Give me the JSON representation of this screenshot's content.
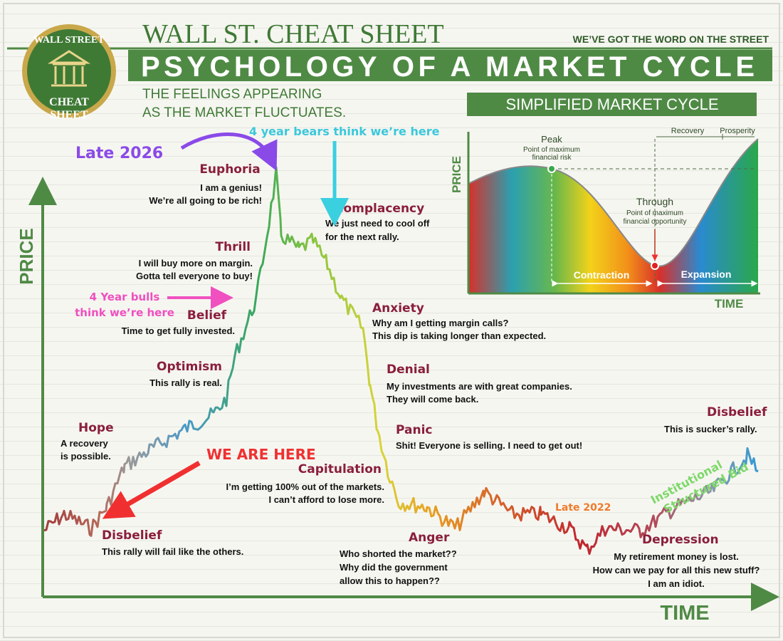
{
  "header": {
    "logo": [
      "WALL STREET",
      "CHEAT",
      "SHEET"
    ],
    "brand": "WALL ST. CHEAT SHEET",
    "tagline": "WE’VE GOT THE WORD ON THE STREET",
    "title": "PSYCHOLOGY OF A MARKET CYCLE",
    "subtitle": [
      "THE FEELINGS APPEARING",
      "AS THE MARKET FLUCTUATES."
    ]
  },
  "axes": {
    "y_label": "PRICE",
    "x_label": "TIME"
  },
  "stages": [
    {
      "name": "Disbelief",
      "lines": [
        "This rally will fail like the others."
      ]
    },
    {
      "name": "Hope",
      "lines": [
        "A recovery",
        "is possible."
      ]
    },
    {
      "name": "Optimism",
      "lines": [
        "This rally is real."
      ]
    },
    {
      "name": "Belief",
      "lines": [
        "Time to get fully invested."
      ]
    },
    {
      "name": "Thrill",
      "lines": [
        "I will buy more on margin.",
        "Gotta tell everyone to buy!"
      ]
    },
    {
      "name": "Euphoria",
      "lines": [
        "I am a genius!",
        "We’re all going to be rich!"
      ]
    },
    {
      "name": "Complacency",
      "lines": [
        "We just need to cool off",
        "for the next rally."
      ]
    },
    {
      "name": "Anxiety",
      "lines": [
        "Why am I getting margin calls?",
        "This dip is taking longer than expected."
      ]
    },
    {
      "name": "Denial",
      "lines": [
        "My investments are with great companies.",
        "They will come back."
      ]
    },
    {
      "name": "Panic",
      "lines": [
        "Shit! Everyone is selling. I need to get out!"
      ]
    },
    {
      "name": "Capitulation",
      "lines": [
        "I’m getting 100% out of the markets.",
        "I can’t afford to lose more."
      ]
    },
    {
      "name": "Anger",
      "lines": [
        "Who shorted the market??",
        "Why did the government",
        "allow this to happen??"
      ]
    },
    {
      "name": "Depression",
      "lines": [
        "My retirement money is lost.",
        "How can we pay for all this new stuff?",
        "I am an idiot."
      ]
    },
    {
      "name": "Disbelief",
      "lines": [
        "This is sucker’s rally."
      ]
    }
  ],
  "annotations": {
    "late_2026": "Late 2026",
    "bears": "4 year bears think we’re here",
    "bulls": [
      "4 Year bulls",
      "think we’re here"
    ],
    "we_are_here": "WE ARE HERE",
    "late_2022": "Late 2022",
    "institutional": [
      "Institutional",
      "Structured Bid"
    ]
  },
  "inset": {
    "title": "SIMPLIFIED MARKET CYCLE",
    "peak": "Peak",
    "peak_note": [
      "Point of maximum",
      "financial risk"
    ],
    "through": "Through",
    "through_note": [
      "Point of maximum",
      "financial opportunity"
    ],
    "recovery": "Recovery",
    "prosperity": "Prosperity",
    "contraction": "Contraction",
    "expansion": "Expansion",
    "y_label": "PRICE",
    "x_label": "TIME"
  }
}
